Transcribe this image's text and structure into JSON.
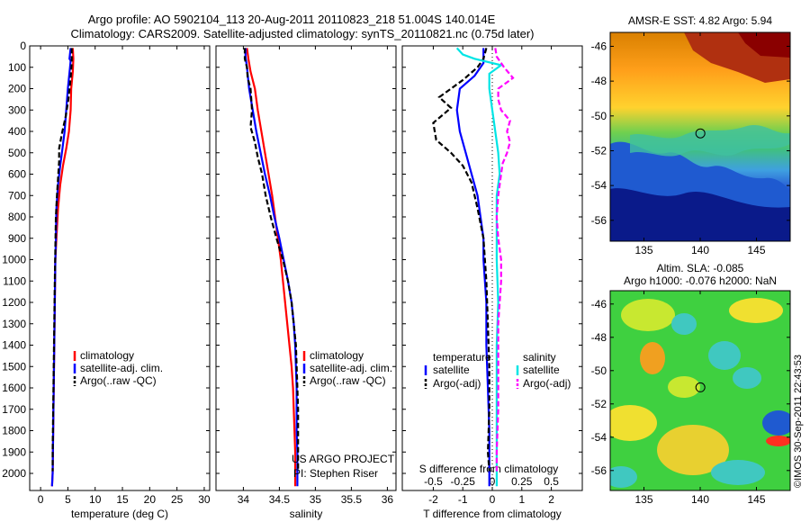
{
  "header": {
    "line1": "Argo profile: AO 5902104_113 20-Aug-2011 20110823_218 51.004S 140.014E",
    "line2": "Climatology: CARS2009. Satellite-adjusted climatology: synTS_20110821.nc (0.75d later)"
  },
  "colors": {
    "climatology": "#ff0000",
    "satellite": "#0000ff",
    "argo": "#000000",
    "satellite_salinity": "#00e5e5",
    "argo_salinity": "#ff00ff"
  },
  "chart_data": [
    {
      "id": "temperature",
      "type": "line",
      "xlabel": "temperature (deg C)",
      "ylabel": "",
      "xlim": [
        -2,
        31
      ],
      "ylim": [
        2080,
        0
      ],
      "y_reversed": true,
      "xticks": [
        0,
        5,
        10,
        15,
        20,
        25,
        30
      ],
      "yticks": [
        0,
        100,
        200,
        300,
        400,
        500,
        600,
        700,
        800,
        900,
        1000,
        1100,
        1200,
        1300,
        1400,
        1500,
        1600,
        1700,
        1800,
        1900,
        2000
      ],
      "legend": {
        "entries": [
          "climatology",
          "satellite-adj. clim.",
          "Argo(..raw -QC)"
        ],
        "position": "lower-center"
      },
      "series": [
        {
          "name": "climatology",
          "color": "#ff0000",
          "dash": "",
          "points": [
            [
              5.9,
              10
            ],
            [
              6.0,
              60
            ],
            [
              5.9,
              120
            ],
            [
              5.6,
              200
            ],
            [
              5.5,
              300
            ],
            [
              5.2,
              400
            ],
            [
              4.7,
              480
            ],
            [
              4.1,
              560
            ],
            [
              3.6,
              650
            ],
            [
              3.2,
              760
            ],
            [
              2.9,
              900
            ],
            [
              2.7,
              1000
            ],
            [
              2.6,
              1200
            ],
            [
              2.5,
              1400
            ],
            [
              2.4,
              1600
            ],
            [
              2.3,
              1800
            ],
            [
              2.2,
              2000
            ],
            [
              2.1,
              2060
            ]
          ]
        },
        {
          "name": "satellite-adj. clim.",
          "color": "#0000ff",
          "dash": "",
          "points": [
            [
              5.5,
              10
            ],
            [
              5.3,
              60
            ],
            [
              5.5,
              70
            ],
            [
              5.4,
              100
            ],
            [
              5.0,
              200
            ],
            [
              4.7,
              300
            ],
            [
              4.4,
              400
            ],
            [
              4.0,
              480
            ],
            [
              3.6,
              560
            ],
            [
              3.2,
              650
            ],
            [
              2.9,
              760
            ],
            [
              2.8,
              900
            ],
            [
              2.7,
              1000
            ],
            [
              2.6,
              1200
            ],
            [
              2.5,
              1400
            ],
            [
              2.4,
              1600
            ],
            [
              2.3,
              1800
            ],
            [
              2.2,
              2000
            ],
            [
              2.1,
              2060
            ]
          ]
        },
        {
          "name": "Argo(..raw -QC)",
          "color": "#000000",
          "dash": "6,3",
          "points": [
            [
              5.7,
              10
            ],
            [
              5.7,
              80
            ],
            [
              5.5,
              150
            ],
            [
              5.1,
              250
            ],
            [
              4.6,
              330
            ],
            [
              3.9,
              410
            ],
            [
              3.4,
              480
            ],
            [
              3.4,
              540
            ],
            [
              3.2,
              620
            ],
            [
              3.0,
              700
            ],
            [
              2.8,
              800
            ],
            [
              2.7,
              950
            ],
            [
              2.6,
              1100
            ],
            [
              2.5,
              1300
            ],
            [
              2.4,
              1500
            ],
            [
              2.3,
              1700
            ],
            [
              2.2,
              1900
            ],
            [
              2.2,
              1990
            ]
          ]
        }
      ]
    },
    {
      "id": "salinity",
      "type": "line",
      "xlabel": "salinity",
      "ylabel": "",
      "xlim": [
        33.62,
        36.12
      ],
      "ylim": [
        2080,
        0
      ],
      "y_reversed": true,
      "xticks": [
        34,
        34.5,
        35,
        35.5,
        36
      ],
      "legend": {
        "entries": [
          "climatology",
          "satellite-adj. clim.",
          "Argo(..raw -QC)"
        ],
        "position": "lower-right"
      },
      "annotation": [
        "US ARGO PROJECT",
        "PI: Stephen Riser"
      ],
      "series": [
        {
          "name": "climatology",
          "color": "#ff0000",
          "dash": "",
          "points": [
            [
              34.05,
              10
            ],
            [
              34.07,
              60
            ],
            [
              34.1,
              120
            ],
            [
              34.16,
              200
            ],
            [
              34.2,
              300
            ],
            [
              34.25,
              400
            ],
            [
              34.3,
              500
            ],
            [
              34.35,
              600
            ],
            [
              34.4,
              700
            ],
            [
              34.44,
              800
            ],
            [
              34.48,
              900
            ],
            [
              34.52,
              1000
            ],
            [
              34.55,
              1100
            ],
            [
              34.58,
              1200
            ],
            [
              34.61,
              1300
            ],
            [
              34.64,
              1400
            ],
            [
              34.67,
              1500
            ],
            [
              34.69,
              1600
            ],
            [
              34.7,
              1700
            ],
            [
              34.71,
              1800
            ],
            [
              34.72,
              1900
            ],
            [
              34.72,
              2000
            ],
            [
              34.72,
              2060
            ]
          ]
        },
        {
          "name": "satellite-adj. clim.",
          "color": "#0000ff",
          "dash": "",
          "points": [
            [
              34.03,
              10
            ],
            [
              34.03,
              50
            ],
            [
              34.05,
              100
            ],
            [
              34.08,
              200
            ],
            [
              34.13,
              300
            ],
            [
              34.18,
              400
            ],
            [
              34.24,
              500
            ],
            [
              34.3,
              600
            ],
            [
              34.37,
              700
            ],
            [
              34.43,
              800
            ],
            [
              34.5,
              900
            ],
            [
              34.56,
              1000
            ],
            [
              34.62,
              1100
            ],
            [
              34.67,
              1200
            ],
            [
              34.7,
              1300
            ],
            [
              34.72,
              1400
            ],
            [
              34.73,
              1500
            ],
            [
              34.74,
              1600
            ],
            [
              34.74,
              1700
            ],
            [
              34.74,
              1800
            ],
            [
              34.75,
              1900
            ],
            [
              34.75,
              2000
            ],
            [
              34.75,
              2060
            ]
          ]
        },
        {
          "name": "Argo(..raw -QC)",
          "color": "#000000",
          "dash": "6,3",
          "points": [
            [
              34.02,
              10
            ],
            [
              34.02,
              60
            ],
            [
              34.05,
              100
            ],
            [
              34.06,
              150
            ],
            [
              34.1,
              200
            ],
            [
              34.12,
              300
            ],
            [
              34.1,
              380
            ],
            [
              34.16,
              450
            ],
            [
              34.2,
              520
            ],
            [
              34.26,
              600
            ],
            [
              34.31,
              700
            ],
            [
              34.38,
              800
            ],
            [
              34.46,
              900
            ],
            [
              34.55,
              1000
            ],
            [
              34.62,
              1100
            ],
            [
              34.67,
              1200
            ],
            [
              34.7,
              1300
            ],
            [
              34.73,
              1400
            ],
            [
              34.74,
              1500
            ],
            [
              34.75,
              1600
            ],
            [
              34.76,
              1700
            ],
            [
              34.76,
              1800
            ],
            [
              34.76,
              1900
            ],
            [
              34.76,
              1990
            ]
          ]
        }
      ]
    },
    {
      "id": "difference",
      "type": "line",
      "xlabel": "T difference from climatology",
      "xlabel_top": "S difference from climatology",
      "xlim": [
        -3.05,
        3.05
      ],
      "ylim": [
        2080,
        0
      ],
      "y_reversed": true,
      "xticks": [
        -2,
        -1,
        0,
        1,
        2
      ],
      "xticks_top_labels": [
        "-0.5",
        "-0.25",
        "0",
        "0.25",
        "0.5"
      ],
      "xticks_top_positions": [
        -2,
        -1,
        0,
        1,
        2
      ],
      "legend_left": {
        "title": "temperature",
        "entries": [
          "satellite",
          "Argo(-adj)"
        ]
      },
      "legend_right": {
        "title": "salinity",
        "entries": [
          "satellite",
          "Argo(-adj)"
        ]
      },
      "series": [
        {
          "name": "temperature satellite",
          "color": "#0000ff",
          "dash": "",
          "points": [
            [
              -0.3,
              10
            ],
            [
              -0.3,
              80
            ],
            [
              -0.6,
              140
            ],
            [
              -1.1,
              200
            ],
            [
              -1.2,
              300
            ],
            [
              -1.1,
              400
            ],
            [
              -0.9,
              500
            ],
            [
              -0.7,
              600
            ],
            [
              -0.5,
              700
            ],
            [
              -0.4,
              800
            ],
            [
              -0.3,
              900
            ],
            [
              -0.3,
              1000
            ],
            [
              -0.2,
              1200
            ],
            [
              -0.2,
              1400
            ],
            [
              -0.15,
              1600
            ],
            [
              -0.1,
              1800
            ],
            [
              -0.1,
              2000
            ],
            [
              -0.1,
              2060
            ]
          ]
        },
        {
          "name": "temperature Argo(-adj)",
          "color": "#000000",
          "dash": "6,3",
          "points": [
            [
              -0.2,
              10
            ],
            [
              -0.3,
              60
            ],
            [
              -0.5,
              100
            ],
            [
              -1.0,
              160
            ],
            [
              -1.8,
              240
            ],
            [
              -1.4,
              290
            ],
            [
              -2.0,
              360
            ],
            [
              -1.9,
              440
            ],
            [
              -1.4,
              500
            ],
            [
              -1.0,
              560
            ],
            [
              -0.7,
              640
            ],
            [
              -0.5,
              760
            ],
            [
              -0.3,
              900
            ],
            [
              -0.2,
              1100
            ],
            [
              -0.15,
              1300
            ],
            [
              -0.1,
              1500
            ],
            [
              -0.1,
              1700
            ],
            [
              -0.15,
              1900
            ],
            [
              -0.1,
              1990
            ]
          ]
        },
        {
          "name": "salinity satellite",
          "color": "#00e5e5",
          "dash": "",
          "points": [
            [
              -1.2,
              10
            ],
            [
              -1.0,
              40
            ],
            [
              -0.6,
              60
            ],
            [
              0.3,
              90
            ],
            [
              -0.1,
              130
            ],
            [
              -0.1,
              200
            ],
            [
              0.0,
              300
            ],
            [
              0.1,
              400
            ],
            [
              0.2,
              500
            ],
            [
              0.25,
              600
            ],
            [
              0.15,
              700
            ],
            [
              0.15,
              800
            ],
            [
              0.15,
              1000
            ],
            [
              0.2,
              1200
            ],
            [
              0.15,
              1400
            ],
            [
              0.15,
              1600
            ],
            [
              0.15,
              1800
            ],
            [
              0.15,
              2000
            ],
            [
              0.15,
              2060
            ]
          ]
        },
        {
          "name": "salinity Argo(-adj)",
          "color": "#ff00ff",
          "dash": "6,3",
          "points": [
            [
              0.1,
              10
            ],
            [
              0.15,
              50
            ],
            [
              0.4,
              100
            ],
            [
              0.7,
              150
            ],
            [
              0.2,
              200
            ],
            [
              0.2,
              250
            ],
            [
              0.3,
              300
            ],
            [
              0.6,
              350
            ],
            [
              0.5,
              400
            ],
            [
              0.6,
              450
            ],
            [
              0.5,
              500
            ],
            [
              0.35,
              550
            ],
            [
              0.3,
              600
            ],
            [
              0.2,
              700
            ],
            [
              0.15,
              800
            ],
            [
              0.2,
              900
            ],
            [
              0.3,
              1000
            ],
            [
              0.3,
              1100
            ],
            [
              0.2,
              1300
            ],
            [
              0.2,
              1500
            ],
            [
              0.2,
              1700
            ],
            [
              0.15,
              1900
            ],
            [
              0.15,
              1990
            ]
          ]
        }
      ]
    },
    {
      "id": "sst-map",
      "type": "heatmap",
      "title": "AMSR-E SST: 4.82 Argo: 5.94",
      "xlim": [
        132,
        148
      ],
      "ylim": [
        -57.2,
        -45.2
      ],
      "xticks": [
        135,
        140,
        145
      ],
      "yticks": [
        -46,
        -48,
        -50,
        -52,
        -54,
        -56
      ],
      "marker": {
        "lon": 140.014,
        "lat": -51.004
      }
    },
    {
      "id": "sla-map",
      "type": "heatmap",
      "title": "Altim. SLA: -0.085",
      "subtitle": "Argo h1000: -0.076 h2000: NaN",
      "xlim": [
        132,
        148
      ],
      "ylim": [
        -57.2,
        -45.2
      ],
      "xticks": [
        135,
        140,
        145
      ],
      "yticks": [
        -46,
        -48,
        -50,
        -52,
        -54,
        -56
      ],
      "marker": {
        "lon": 140.014,
        "lat": -51.004
      }
    }
  ],
  "footer": {
    "credit": "©IMOS 30-Sep-2011 22:43:53"
  }
}
